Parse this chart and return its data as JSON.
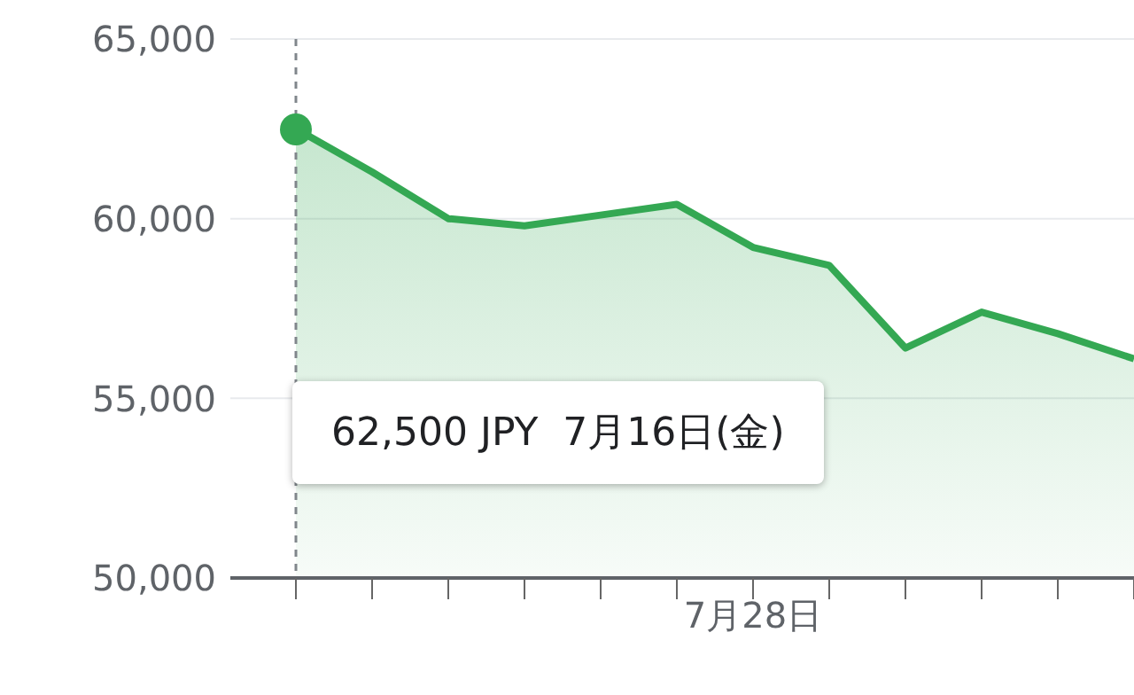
{
  "chart_data": {
    "type": "area",
    "categories": [
      null,
      null,
      null,
      null,
      null,
      null,
      "7月28日",
      null,
      null,
      null,
      null,
      null
    ],
    "series": [
      {
        "color": "#34a853",
        "values": [
          62500,
          61300,
          60000,
          59800,
          60100,
          60400,
          59200,
          58700,
          56400,
          57400,
          56800,
          56100
        ]
      }
    ],
    "ylim": [
      50000,
      65000
    ],
    "yticks": [
      {
        "value": 50000,
        "label": "50,000"
      },
      {
        "value": 55000,
        "label": "55,000"
      },
      {
        "value": 60000,
        "label": "60,000"
      },
      {
        "value": 65000,
        "label": "65,000"
      }
    ],
    "grid": "y",
    "legend": false,
    "annotations": [
      "62,500 JPY  7月16日(金)"
    ]
  }
}
